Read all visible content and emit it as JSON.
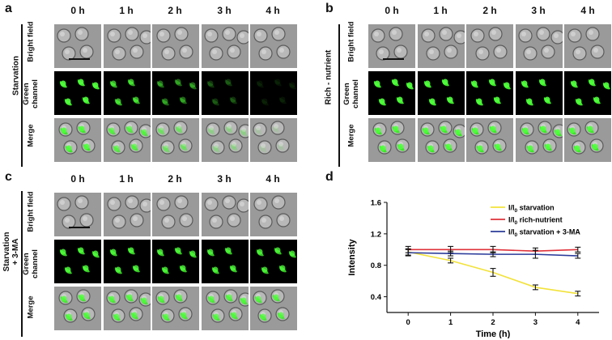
{
  "figure": {
    "time_labels": [
      "0 h",
      "1 h",
      "2 h",
      "3 h",
      "4 h"
    ],
    "row_labels": {
      "bright": "Bright field",
      "green_line1": "Green",
      "green_line2": "channel",
      "merge": "Merge"
    },
    "panels": [
      {
        "letter": "a",
        "condition": "Starvation",
        "condition_line2": "",
        "green_intensity": [
          1.0,
          0.75,
          0.45,
          0.22,
          0.08
        ]
      },
      {
        "letter": "b",
        "condition": "Rich - nutrient",
        "condition_line2": "",
        "green_intensity": [
          1.0,
          1.0,
          1.0,
          1.0,
          1.0
        ]
      },
      {
        "letter": "c",
        "condition": "Starvation",
        "condition_line2": "+ 3-MA",
        "green_intensity": [
          0.9,
          0.88,
          0.86,
          0.85,
          0.84
        ]
      }
    ],
    "chart_panel_letter": "d"
  },
  "chart_data": {
    "type": "line",
    "x": [
      0,
      1,
      2,
      3,
      4
    ],
    "xlabel": "Time (h)",
    "ylabel": "Intensity",
    "xlim": [
      -0.5,
      4.5
    ],
    "ylim": [
      0.2,
      1.6
    ],
    "yticks": [
      0.4,
      0.8,
      1.2,
      1.6
    ],
    "xticks": [
      0,
      1,
      2,
      3,
      4
    ],
    "legend_position": "top-right",
    "series": [
      {
        "name_main": "I/I",
        "name_sub": "0",
        "name_rest": " starvation",
        "color": "#f2e23a",
        "values": [
          0.97,
          0.86,
          0.71,
          0.52,
          0.44
        ],
        "errors": [
          0.04,
          0.03,
          0.05,
          0.03,
          0.03
        ]
      },
      {
        "name_main": "I/I",
        "name_sub": "0",
        "name_rest": " rich-nutrient",
        "color": "#e0323a",
        "values": [
          1.0,
          1.0,
          1.0,
          0.98,
          1.0
        ],
        "errors": [
          0.04,
          0.04,
          0.04,
          0.04,
          0.03
        ]
      },
      {
        "name_main": "I/I",
        "name_sub": "0",
        "name_rest": " starvation + 3-MA",
        "color": "#2b3b9a",
        "values": [
          0.96,
          0.95,
          0.94,
          0.94,
          0.92
        ],
        "errors": [
          0.04,
          0.03,
          0.03,
          0.05,
          0.03
        ]
      }
    ]
  }
}
